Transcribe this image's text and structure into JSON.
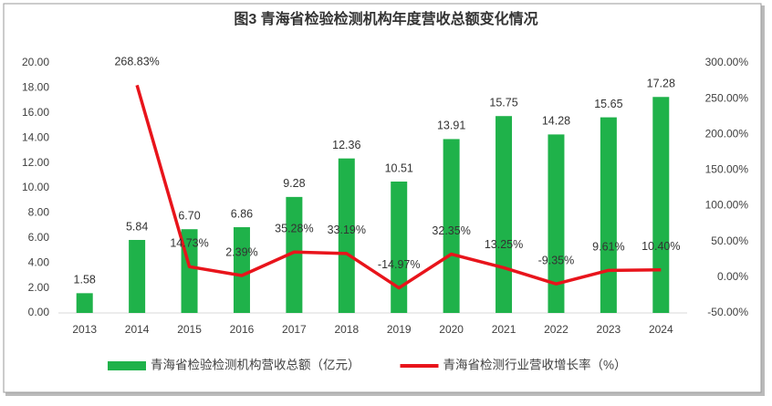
{
  "chart_data": {
    "type": "bar_line",
    "title": "图3 青海省检验检测机构年度营收总额变化情况",
    "categories": [
      "2013",
      "2014",
      "2015",
      "2016",
      "2017",
      "2018",
      "2019",
      "2020",
      "2021",
      "2022",
      "2023",
      "2024"
    ],
    "series": [
      {
        "name": "青海省检验检测机构营收总额（亿元）",
        "type": "bar",
        "color": "#1fb24a",
        "values": [
          1.58,
          5.84,
          6.7,
          6.86,
          9.28,
          12.36,
          10.51,
          13.91,
          15.75,
          14.28,
          15.65,
          17.28
        ],
        "value_labels": [
          "1.58",
          "5.84",
          "6.70",
          "6.86",
          "9.28",
          "12.36",
          "10.51",
          "13.91",
          "15.75",
          "14.28",
          "15.65",
          "17.28"
        ]
      },
      {
        "name": "青海省检测行业营收增长率（%）",
        "type": "line",
        "axis": "y2",
        "color": "#e8141b",
        "values": [
          null,
          268.83,
          14.73,
          2.39,
          35.28,
          33.19,
          -14.97,
          32.35,
          13.25,
          -9.35,
          9.61,
          10.4
        ],
        "value_labels": [
          null,
          "268.83%",
          "14.73%",
          "2.39%",
          "35.28%",
          "33.19%",
          "-14.97%",
          "32.35%",
          "13.25%",
          "-9.35%",
          "9.61%",
          "10.40%"
        ]
      }
    ],
    "ylim": [
      0,
      20
    ],
    "yticks": [
      {
        "value": 0,
        "label": "0.00"
      },
      {
        "value": 2,
        "label": "2.00"
      },
      {
        "value": 4,
        "label": "4.00"
      },
      {
        "value": 6,
        "label": "6.00"
      },
      {
        "value": 8,
        "label": "8.00"
      },
      {
        "value": 10,
        "label": "10.00"
      },
      {
        "value": 12,
        "label": "12.00"
      },
      {
        "value": 14,
        "label": "14.00"
      },
      {
        "value": 16,
        "label": "16.00"
      },
      {
        "value": 18,
        "label": "18.00"
      },
      {
        "value": 20,
        "label": "20.00"
      }
    ],
    "y2lim": [
      -50,
      300
    ],
    "y2ticks": [
      {
        "value": -50,
        "label": "-50.00%"
      },
      {
        "value": 0,
        "label": "0.00%"
      },
      {
        "value": 50,
        "label": "50.00%"
      },
      {
        "value": 100,
        "label": "100.00%"
      },
      {
        "value": 150,
        "label": "150.00%"
      },
      {
        "value": 200,
        "label": "200.00%"
      },
      {
        "value": 250,
        "label": "250.00%"
      },
      {
        "value": 300,
        "label": "300.00%"
      }
    ],
    "legend": "bottom"
  }
}
